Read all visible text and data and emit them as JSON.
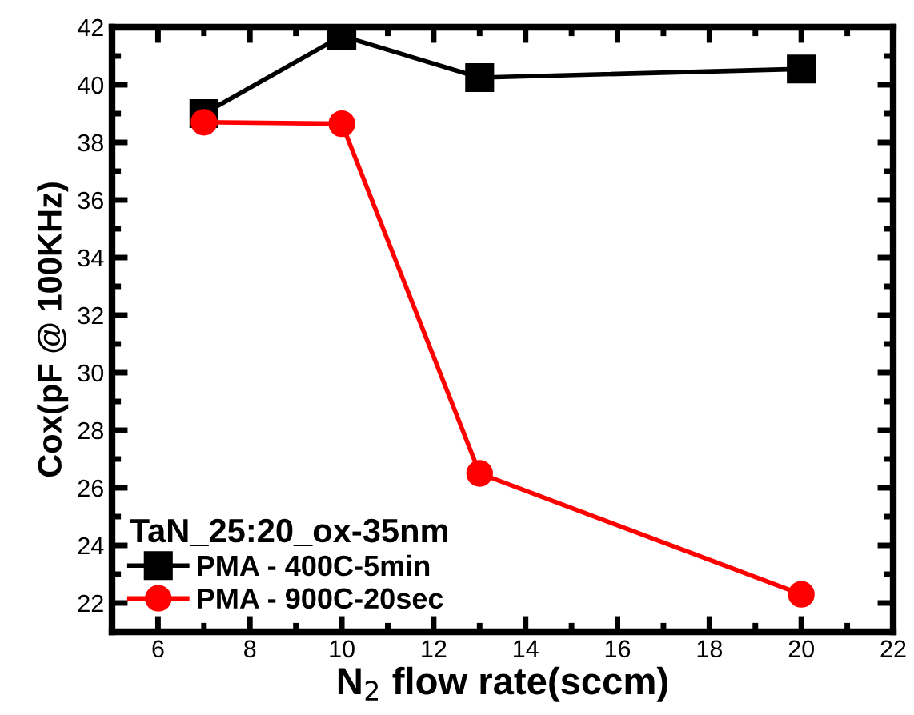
{
  "chart_data": {
    "type": "line",
    "xlabel": "N$_{2}$ flow rate(sccm)",
    "ylabel": "Cox(pF @ 100KHz)",
    "legend_title": "TaN_25:20_ox-35nm",
    "legend": "bottom left",
    "grid": false,
    "x": [
      7,
      10,
      13,
      20
    ],
    "series": [
      {
        "name": "PMA - 400C-5min",
        "color": "#000000",
        "marker": "square",
        "values": [
          39.0,
          41.7,
          40.25,
          40.55
        ]
      },
      {
        "name": "PMA - 900C-20sec",
        "color": "#ff0000",
        "marker": "circle",
        "values": [
          38.7,
          38.65,
          26.5,
          22.3
        ]
      }
    ],
    "xlim": [
      5,
      22
    ],
    "xticks": [
      6,
      8,
      10,
      12,
      14,
      16,
      18,
      20,
      22
    ],
    "ylim": [
      21,
      42
    ],
    "yticks": [
      22,
      24,
      26,
      28,
      30,
      32,
      34,
      36,
      38,
      40,
      42
    ]
  }
}
